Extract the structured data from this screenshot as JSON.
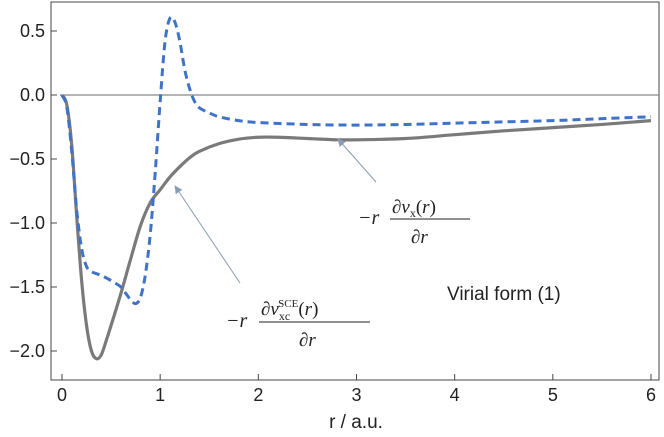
{
  "chart_data": {
    "type": "line",
    "title": "",
    "xlabel": "r / a.u.",
    "ylabel": "",
    "xlim": [
      -0.1,
      6.1
    ],
    "ylim": [
      -2.15,
      0.65
    ],
    "x_ticks": [
      0,
      1,
      2,
      3,
      4,
      5,
      6
    ],
    "x_tick_labels": [
      "0",
      "1",
      "2",
      "3",
      "4",
      "5",
      "6"
    ],
    "y_ticks": [
      0.5,
      0.0,
      -0.5,
      -1.0,
      -1.5,
      -2.0
    ],
    "y_tick_labels": [
      "0.5",
      "0.0",
      "−0.5",
      "−1.0",
      "−1.5",
      "−2.0"
    ],
    "grid": false,
    "legend": "none",
    "annotation_text": "Virial form (1)",
    "colors": {
      "sce": "#7a7a7a",
      "vx": "#3f73c9",
      "zero_line": "#888888",
      "arrow": "#8a9bb5",
      "axis": "#444444"
    },
    "series": [
      {
        "line_style": "solid",
        "x": [
          0,
          0.05,
          0.1,
          0.15,
          0.2,
          0.25,
          0.3,
          0.35,
          0.4,
          0.45,
          0.5,
          0.6,
          0.7,
          0.8,
          0.9,
          1.0,
          1.1,
          1.2,
          1.3,
          1.4,
          1.6,
          1.8,
          2.0,
          2.2,
          2.5,
          2.8,
          3.0,
          3.5,
          4.0,
          4.5,
          5.0,
          5.5,
          6.0
        ],
        "y": [
          0,
          -0.08,
          -0.4,
          -0.95,
          -1.45,
          -1.8,
          -2.0,
          -2.06,
          -2.03,
          -1.92,
          -1.8,
          -1.55,
          -1.28,
          -1.02,
          -0.84,
          -0.74,
          -0.64,
          -0.56,
          -0.49,
          -0.44,
          -0.38,
          -0.345,
          -0.33,
          -0.33,
          -0.34,
          -0.35,
          -0.35,
          -0.34,
          -0.31,
          -0.28,
          -0.255,
          -0.23,
          -0.2
        ]
      },
      {
        "line_style": "dashed",
        "x": [
          0,
          0.05,
          0.1,
          0.15,
          0.2,
          0.25,
          0.3,
          0.4,
          0.5,
          0.6,
          0.65,
          0.7,
          0.75,
          0.8,
          0.85,
          0.9,
          0.95,
          1.0,
          1.05,
          1.1,
          1.15,
          1.2,
          1.25,
          1.3,
          1.35,
          1.4,
          1.5,
          1.6,
          1.8,
          2.0,
          2.5,
          3.0,
          3.5,
          4.0,
          4.5,
          5.0,
          5.5,
          6.0
        ],
        "y": [
          0,
          -0.1,
          -0.45,
          -0.9,
          -1.2,
          -1.34,
          -1.38,
          -1.41,
          -1.45,
          -1.5,
          -1.55,
          -1.6,
          -1.63,
          -1.58,
          -1.4,
          -1.08,
          -0.6,
          -0.05,
          0.42,
          0.6,
          0.57,
          0.42,
          0.2,
          0.05,
          -0.05,
          -0.1,
          -0.14,
          -0.17,
          -0.2,
          -0.215,
          -0.23,
          -0.235,
          -0.23,
          -0.22,
          -0.21,
          -0.2,
          -0.185,
          -0.17
        ]
      }
    ]
  }
}
